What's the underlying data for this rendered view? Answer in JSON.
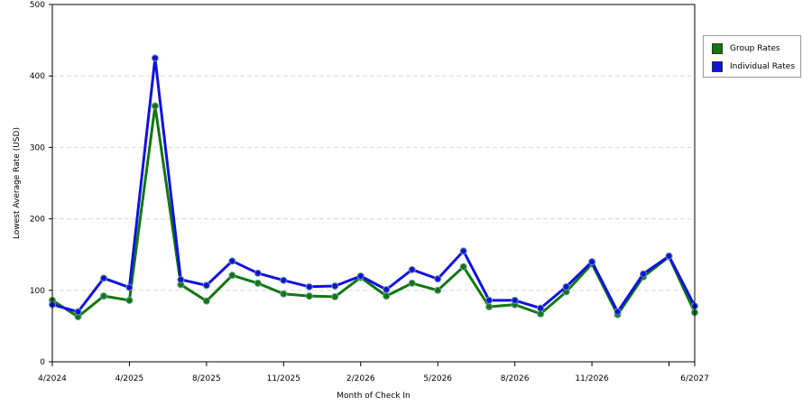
{
  "chart_data": {
    "type": "line",
    "xlabel": "Month of Check In",
    "ylabel": "Lowest Average Rate (USD)",
    "ylim": [
      0,
      500
    ],
    "yticks": [
      0,
      100,
      200,
      300,
      400,
      500
    ],
    "grid": true,
    "legend_position": "top-right",
    "x_tick_labels": [
      {
        "index": 0,
        "label": "4/2024"
      },
      {
        "index": 3,
        "label": "4/2025"
      },
      {
        "index": 6,
        "label": "8/2025"
      },
      {
        "index": 9,
        "label": "11/2025"
      },
      {
        "index": 12,
        "label": "2/2026"
      },
      {
        "index": 15,
        "label": "5/2026"
      },
      {
        "index": 18,
        "label": "8/2026"
      },
      {
        "index": 21,
        "label": "11/2026"
      },
      {
        "index": 24,
        "label": ""
      },
      {
        "index": 25,
        "label": "6/2027"
      }
    ],
    "point_count": 26,
    "series": [
      {
        "name": "Group Rates",
        "color": "#117711",
        "values": [
          86,
          63,
          92,
          86,
          358,
          108,
          85,
          121,
          110,
          95,
          92,
          91,
          118,
          92,
          110,
          100,
          133,
          77,
          80,
          67,
          98,
          137,
          66,
          119,
          147,
          69
        ]
      },
      {
        "name": "Individual Rates",
        "color": "#1111dd",
        "values": [
          80,
          70,
          117,
          104,
          425,
          115,
          107,
          141,
          124,
          114,
          105,
          106,
          120,
          101,
          129,
          116,
          155,
          86,
          86,
          75,
          105,
          140,
          70,
          123,
          148,
          78
        ]
      }
    ]
  }
}
